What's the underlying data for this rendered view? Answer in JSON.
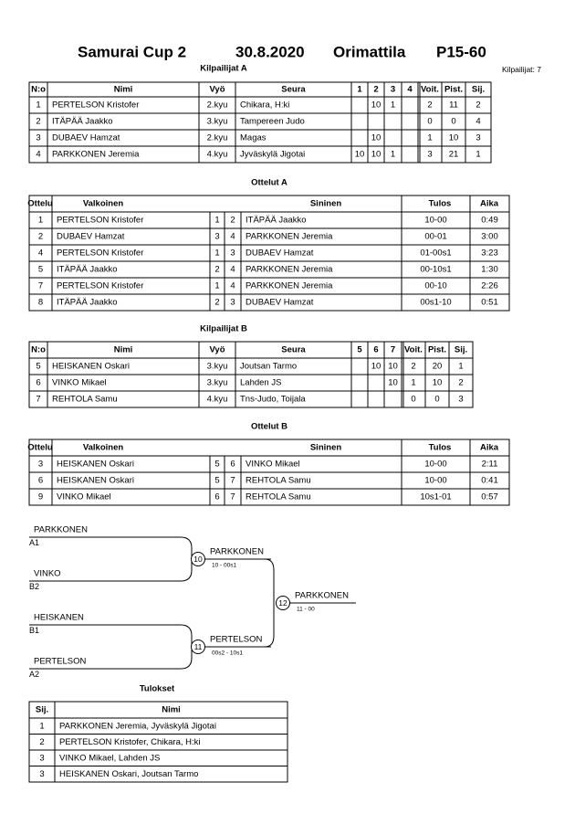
{
  "header": {
    "title": "Samurai Cup 2",
    "date": "30.8.2020",
    "place": "Orimattila",
    "category": "P15-60",
    "competitor_count": "Kilpailijat: 7"
  },
  "pool_a": {
    "title": "Kilpailijat A",
    "columns": [
      "N:o",
      "Nimi",
      "Vyö",
      "Seura",
      "1",
      "2",
      "3",
      "4",
      "Voit.",
      "Pist.",
      "Sij."
    ],
    "rows": [
      [
        1,
        "PERTELSON Kristofer",
        "2.kyu",
        "Chikara, H:ki",
        null,
        10,
        1,
        null,
        2,
        11,
        2
      ],
      [
        2,
        "ITÄPÄÄ Jaakko",
        "3.kyu",
        "Tampereen Judo",
        null,
        null,
        null,
        null,
        0,
        0,
        4
      ],
      [
        3,
        "DUBAEV Hamzat",
        "2.kyu",
        "Magas",
        null,
        10,
        null,
        null,
        1,
        10,
        3
      ],
      [
        4,
        "PARKKONEN Jeremia",
        "4.kyu",
        "Jyväskylä Jigotai",
        10,
        10,
        1,
        null,
        3,
        21,
        1
      ]
    ]
  },
  "matches_a": {
    "title": "Ottelut A",
    "columns": [
      "Ottelu",
      "Valkoinen",
      "Sininen",
      "Tulos",
      "Aika"
    ],
    "rows": [
      [
        1,
        "PERTELSON Kristofer",
        1,
        2,
        "ITÄPÄÄ Jaakko",
        "10-00",
        "0:49"
      ],
      [
        2,
        "DUBAEV Hamzat",
        3,
        4,
        "PARKKONEN Jeremia",
        "00-01",
        "3:00"
      ],
      [
        4,
        "PERTELSON Kristofer",
        1,
        3,
        "DUBAEV Hamzat",
        "01-00s1",
        "3:23"
      ],
      [
        5,
        "ITÄPÄÄ Jaakko",
        2,
        4,
        "PARKKONEN Jeremia",
        "00-10s1",
        "1:30"
      ],
      [
        7,
        "PERTELSON Kristofer",
        1,
        4,
        "PARKKONEN Jeremia",
        "00-10",
        "2:26"
      ],
      [
        8,
        "ITÄPÄÄ Jaakko",
        2,
        3,
        "DUBAEV Hamzat",
        "00s1-10",
        "0:51"
      ]
    ]
  },
  "pool_b": {
    "title": "Kilpailijat B",
    "columns": [
      "N:o",
      "Nimi",
      "Vyö",
      "Seura",
      "5",
      "6",
      "7",
      "Voit.",
      "Pist.",
      "Sij."
    ],
    "rows": [
      [
        5,
        "HEISKANEN Oskari",
        "3.kyu",
        "Joutsan Tarmo",
        null,
        10,
        10,
        2,
        20,
        1
      ],
      [
        6,
        "VINKO Mikael",
        "3.kyu",
        "Lahden JS",
        null,
        null,
        10,
        1,
        10,
        2
      ],
      [
        7,
        "REHTOLA Samu",
        "4.kyu",
        "Tns-Judo, Toijala",
        null,
        null,
        null,
        0,
        0,
        3
      ]
    ]
  },
  "matches_b": {
    "title": "Ottelut B",
    "columns": [
      "Ottelu",
      "Valkoinen",
      "Sininen",
      "Tulos",
      "Aika"
    ],
    "rows": [
      [
        3,
        "HEISKANEN Oskari",
        5,
        6,
        "VINKO Mikael",
        "10-00",
        "2:11"
      ],
      [
        6,
        "HEISKANEN Oskari",
        5,
        7,
        "REHTOLA Samu",
        "10-00",
        "0:41"
      ],
      [
        9,
        "VINKO Mikael",
        6,
        7,
        "REHTOLA Samu",
        "10s1-01",
        "0:57"
      ]
    ]
  },
  "bracket": {
    "entries": [
      {
        "name": "PARKKONEN",
        "seed": "A1"
      },
      {
        "name": "VINKO",
        "seed": "B2"
      },
      {
        "name": "HEISKANEN",
        "seed": "B1"
      },
      {
        "name": "PERTELSON",
        "seed": "A2"
      }
    ],
    "matches": [
      {
        "number": 10,
        "winner": "PARKKONEN",
        "score": "10 - 00s1"
      },
      {
        "number": 11,
        "winner": "PERTELSON",
        "score": "00s2 - 10s1"
      },
      {
        "number": 12,
        "winner": "PARKKONEN",
        "score": "11 - 00"
      }
    ]
  },
  "results": {
    "title": "Tulokset",
    "columns": [
      "Sij.",
      "Nimi"
    ],
    "rows": [
      [
        1,
        "PARKKONEN Jeremia, Jyväskylä Jigotai"
      ],
      [
        2,
        "PERTELSON Kristofer, Chikara, H:ki"
      ],
      [
        3,
        "VINKO Mikael, Lahden JS"
      ],
      [
        3,
        "HEISKANEN Oskari, Joutsan Tarmo"
      ]
    ]
  }
}
